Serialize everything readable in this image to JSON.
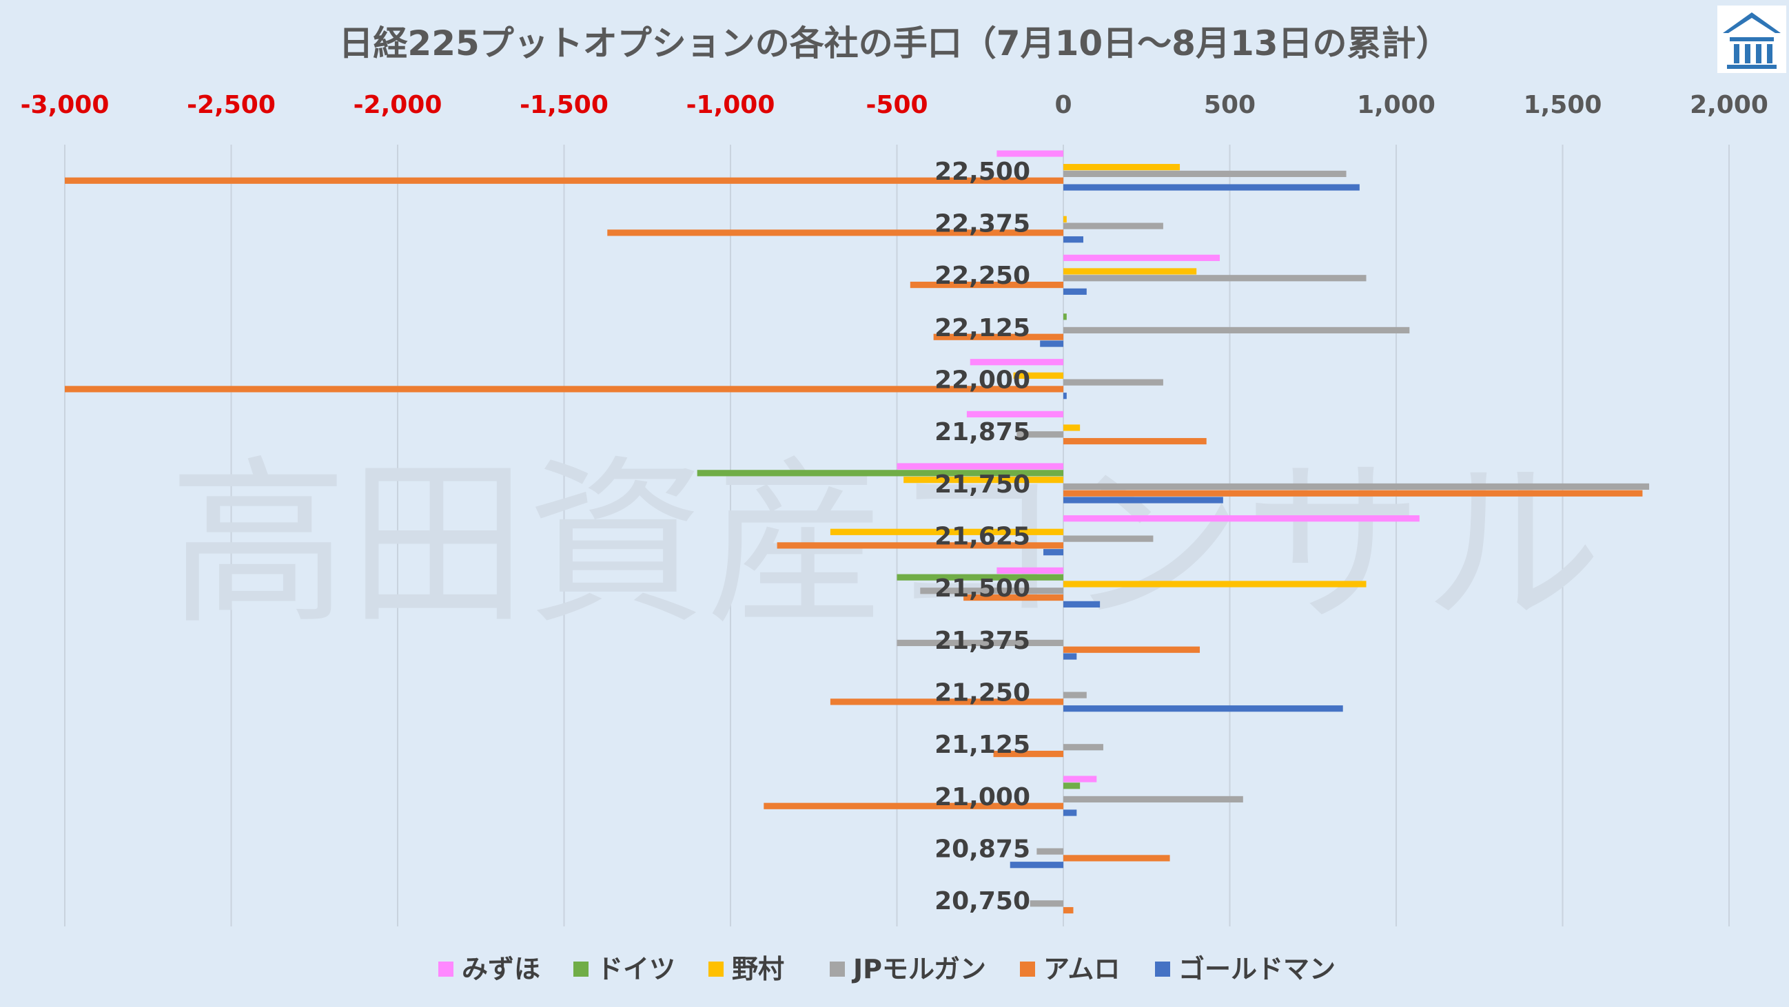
{
  "chart_data": {
    "type": "bar",
    "orientation": "horizontal",
    "title": "日経225プットオプションの各社の手口（7月10日～8月13日の累計）",
    "xlim": [
      -3000,
      2000
    ],
    "x_ticks": [
      -3000,
      -2500,
      -2000,
      -1500,
      -1000,
      -500,
      0,
      500,
      1000,
      1500,
      2000
    ],
    "x_tick_labels": [
      "-3,000",
      "-2,500",
      "-2,000",
      "-1,500",
      "-1,000",
      "-500",
      "0",
      "500",
      "1,000",
      "1,500",
      "2,000"
    ],
    "negative_tick_color": "#e00000",
    "positive_tick_color": "#595959",
    "grid": true,
    "legend_position": "bottom",
    "categories": [
      "22,500",
      "22,375",
      "22,250",
      "22,125",
      "22,000",
      "21,875",
      "21,750",
      "21,625",
      "21,500",
      "21,375",
      "21,250",
      "21,125",
      "21,000",
      "20,875",
      "20,750"
    ],
    "series": [
      {
        "name": "みずほ",
        "color": "#ff88ff",
        "values": [
          -200,
          0,
          470,
          0,
          -280,
          -290,
          -500,
          1070,
          -200,
          0,
          0,
          0,
          100,
          0,
          0
        ]
      },
      {
        "name": "ドイツ",
        "color": "#70ad47",
        "values": [
          0,
          0,
          0,
          10,
          0,
          0,
          -1100,
          0,
          -500,
          0,
          0,
          0,
          50,
          0,
          0
        ]
      },
      {
        "name": "野村",
        "color": "#ffc000",
        "values": [
          350,
          10,
          400,
          0,
          -150,
          50,
          -480,
          -700,
          910,
          0,
          0,
          0,
          0,
          0,
          0
        ]
      },
      {
        "name": "JPモルガン",
        "color": "#a5a5a5",
        "values": [
          850,
          300,
          910,
          1040,
          300,
          -140,
          1760,
          270,
          -430,
          -500,
          70,
          120,
          540,
          -80,
          -100
        ]
      },
      {
        "name": "アムロ",
        "color": "#ed7d31",
        "values": [
          -3000,
          -1370,
          -460,
          -390,
          -3000,
          430,
          1740,
          -860,
          -300,
          410,
          -700,
          -210,
          -900,
          320,
          30
        ]
      },
      {
        "name": "ゴールドマン",
        "color": "#4472c4",
        "values": [
          890,
          60,
          70,
          -70,
          10,
          0,
          480,
          -60,
          110,
          40,
          840,
          0,
          40,
          -160,
          0
        ]
      }
    ]
  },
  "watermark": "高田資産コンサル",
  "logo": {
    "name": "building-logo-icon",
    "color": "#2e75b6"
  }
}
